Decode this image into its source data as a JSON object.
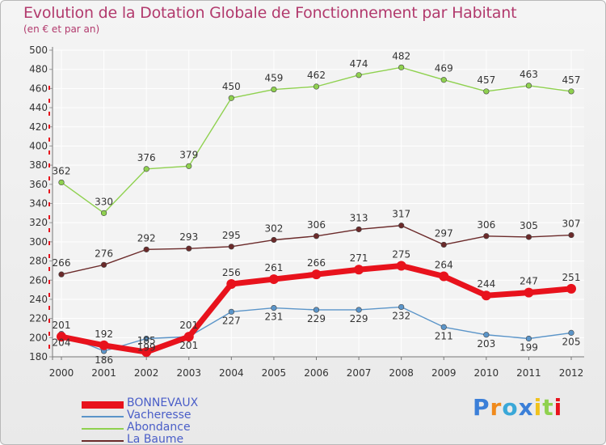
{
  "title": "Evolution de la Dotation Globale de Fonctionnement par Habitant",
  "subtitle": "(en € et par an)",
  "logo": "Proxiti",
  "chart_data": {
    "type": "line",
    "categories": [
      "2000",
      "2001",
      "2002",
      "2003",
      "2004",
      "2005",
      "2006",
      "2007",
      "2008",
      "2009",
      "2010",
      "2011",
      "2012"
    ],
    "ylim": [
      180,
      500
    ],
    "yticks": [
      180,
      200,
      220,
      240,
      260,
      280,
      300,
      320,
      340,
      360,
      380,
      400,
      420,
      440,
      460,
      480,
      500
    ],
    "title": "Evolution de la Dotation Globale de Fonctionnement par Habitant",
    "ylabel": "(en € et par an)",
    "grid": true,
    "legend": "bottom-left",
    "series": [
      {
        "name": "BONNEVAUX",
        "color": "#e8121c",
        "values": [
          201,
          192,
          185,
          201,
          256,
          261,
          266,
          271,
          275,
          264,
          244,
          247,
          251
        ]
      },
      {
        "name": "Vacheresse",
        "color": "#5b95c9",
        "values": [
          204,
          186,
          199,
          201,
          227,
          231,
          229,
          229,
          232,
          211,
          203,
          199,
          205
        ]
      },
      {
        "name": "Abondance",
        "color": "#8fd14f",
        "values": [
          362,
          330,
          376,
          379,
          450,
          459,
          462,
          474,
          482,
          469,
          457,
          463,
          457
        ]
      },
      {
        "name": "La Baume",
        "color": "#6b2a2a",
        "values": [
          266,
          276,
          292,
          293,
          295,
          302,
          306,
          313,
          317,
          297,
          306,
          305,
          307
        ]
      }
    ]
  }
}
